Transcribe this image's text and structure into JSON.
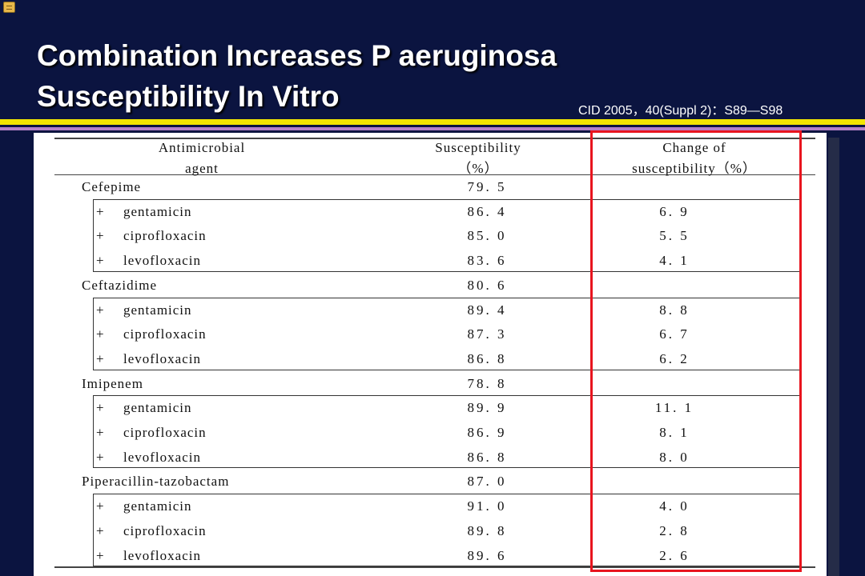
{
  "slide": {
    "title_line1": "Combination Increases P aeruginosa",
    "title_line2": "Susceptibility In Vitro",
    "citation": "CID 2005，40(Suppl 2)：S89—S98"
  },
  "table": {
    "headers": {
      "agent_line1": "Antimicrobial",
      "agent_line2": "agent",
      "susc_line1": "Susceptibility",
      "susc_line2": "（%）",
      "change_line1": "Change of",
      "change_line2": "susceptibility（%）"
    },
    "groups": [
      {
        "name": "Cefepime",
        "value": "79. 5",
        "rows": [
          {
            "agent": "gentamicin",
            "value": "86. 4",
            "change": "6. 9"
          },
          {
            "agent": "ciprofloxacin",
            "value": "85. 0",
            "change": "5. 5"
          },
          {
            "agent": "levofloxacin",
            "value": "83. 6",
            "change": "4. 1"
          }
        ]
      },
      {
        "name": "Ceftazidime",
        "value": "80. 6",
        "rows": [
          {
            "agent": "gentamicin",
            "value": "89. 4",
            "change": "8. 8"
          },
          {
            "agent": "ciprofloxacin",
            "value": "87. 3",
            "change": "6. 7"
          },
          {
            "agent": "levofloxacin",
            "value": "86. 8",
            "change": "6. 2"
          }
        ]
      },
      {
        "name": "Imipenem",
        "value": "78. 8",
        "rows": [
          {
            "agent": "gentamicin",
            "value": "89. 9",
            "change": "11. 1"
          },
          {
            "agent": "ciprofloxacin",
            "value": "86. 9",
            "change": "8. 1"
          },
          {
            "agent": "levofloxacin",
            "value": "86. 8",
            "change": "8. 0"
          }
        ]
      },
      {
        "name": "Piperacillin-tazobactam",
        "value": "87. 0",
        "rows": [
          {
            "agent": "gentamicin",
            "value": "91. 0",
            "change": "4. 0"
          },
          {
            "agent": "ciprofloxacin",
            "value": "89. 8",
            "change": "2. 8"
          },
          {
            "agent": "levofloxacin",
            "value": "89. 6",
            "change": "2. 6"
          }
        ]
      }
    ],
    "plus_sign": "+"
  },
  "colors": {
    "background": "#0b1440",
    "title": "#ffffff",
    "accent_yellow": "#f2e600",
    "accent_purple": "#b482c8",
    "highlight_red": "#e8141e"
  },
  "icons": {
    "corner_note": "note-icon"
  }
}
